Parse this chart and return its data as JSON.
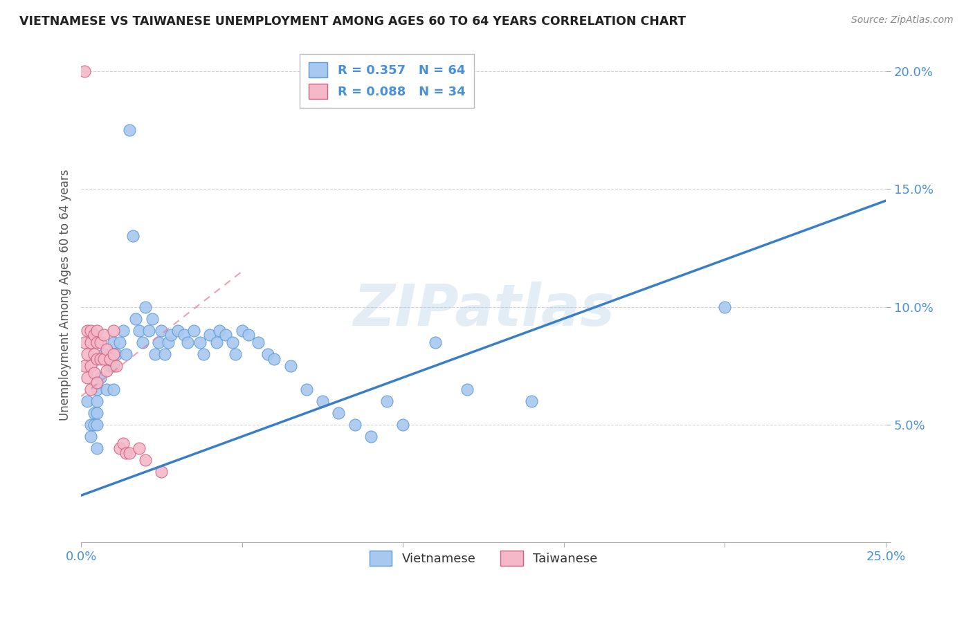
{
  "title": "VIETNAMESE VS TAIWANESE UNEMPLOYMENT AMONG AGES 60 TO 64 YEARS CORRELATION CHART",
  "source": "Source: ZipAtlas.com",
  "ylabel": "Unemployment Among Ages 60 to 64 years",
  "xlim": [
    0.0,
    0.25
  ],
  "ylim": [
    0.0,
    0.21
  ],
  "watermark": "ZIPatlas",
  "vietnamese_color": "#A8C8F0",
  "vietnamese_edge": "#5B9BD5",
  "taiwanese_color": "#F5B8C8",
  "taiwanese_edge": "#D06080",
  "trend_viet_color": "#3A7EC6",
  "trend_taiwan_color": "#E88098",
  "background_color": "#FFFFFF",
  "grid_color": "#CCCCCC",
  "vietnamese_x": [
    0.002,
    0.003,
    0.003,
    0.004,
    0.004,
    0.005,
    0.005,
    0.005,
    0.005,
    0.005,
    0.006,
    0.007,
    0.008,
    0.009,
    0.01,
    0.01,
    0.01,
    0.011,
    0.012,
    0.013,
    0.014,
    0.015,
    0.016,
    0.017,
    0.018,
    0.019,
    0.02,
    0.021,
    0.022,
    0.023,
    0.024,
    0.025,
    0.026,
    0.027,
    0.028,
    0.03,
    0.032,
    0.033,
    0.035,
    0.037,
    0.038,
    0.04,
    0.042,
    0.043,
    0.045,
    0.047,
    0.048,
    0.05,
    0.052,
    0.055,
    0.058,
    0.06,
    0.065,
    0.07,
    0.075,
    0.08,
    0.085,
    0.09,
    0.095,
    0.1,
    0.11,
    0.12,
    0.14,
    0.2
  ],
  "vietnamese_y": [
    0.06,
    0.05,
    0.045,
    0.055,
    0.05,
    0.065,
    0.06,
    0.055,
    0.05,
    0.04,
    0.07,
    0.08,
    0.065,
    0.075,
    0.085,
    0.075,
    0.065,
    0.08,
    0.085,
    0.09,
    0.08,
    0.175,
    0.13,
    0.095,
    0.09,
    0.085,
    0.1,
    0.09,
    0.095,
    0.08,
    0.085,
    0.09,
    0.08,
    0.085,
    0.088,
    0.09,
    0.088,
    0.085,
    0.09,
    0.085,
    0.08,
    0.088,
    0.085,
    0.09,
    0.088,
    0.085,
    0.08,
    0.09,
    0.088,
    0.085,
    0.08,
    0.078,
    0.075,
    0.065,
    0.06,
    0.055,
    0.05,
    0.045,
    0.06,
    0.05,
    0.085,
    0.065,
    0.06,
    0.1
  ],
  "taiwanese_x": [
    0.001,
    0.001,
    0.001,
    0.002,
    0.002,
    0.002,
    0.003,
    0.003,
    0.003,
    0.003,
    0.004,
    0.004,
    0.004,
    0.005,
    0.005,
    0.005,
    0.005,
    0.006,
    0.006,
    0.007,
    0.007,
    0.008,
    0.008,
    0.009,
    0.01,
    0.01,
    0.011,
    0.012,
    0.013,
    0.014,
    0.015,
    0.018,
    0.02,
    0.025
  ],
  "taiwanese_y": [
    0.2,
    0.085,
    0.075,
    0.09,
    0.08,
    0.07,
    0.09,
    0.085,
    0.075,
    0.065,
    0.088,
    0.08,
    0.072,
    0.09,
    0.085,
    0.078,
    0.068,
    0.085,
    0.078,
    0.088,
    0.078,
    0.082,
    0.073,
    0.078,
    0.09,
    0.08,
    0.075,
    0.04,
    0.042,
    0.038,
    0.038,
    0.04,
    0.035,
    0.03
  ],
  "trend_viet_x_start": 0.0,
  "trend_viet_x_end": 0.25,
  "trend_viet_y_start": 0.02,
  "trend_viet_y_end": 0.145,
  "trend_taiwan_x_start": 0.0,
  "trend_taiwan_x_end": 0.05,
  "trend_taiwan_y_start": 0.062,
  "trend_taiwan_y_end": 0.115
}
